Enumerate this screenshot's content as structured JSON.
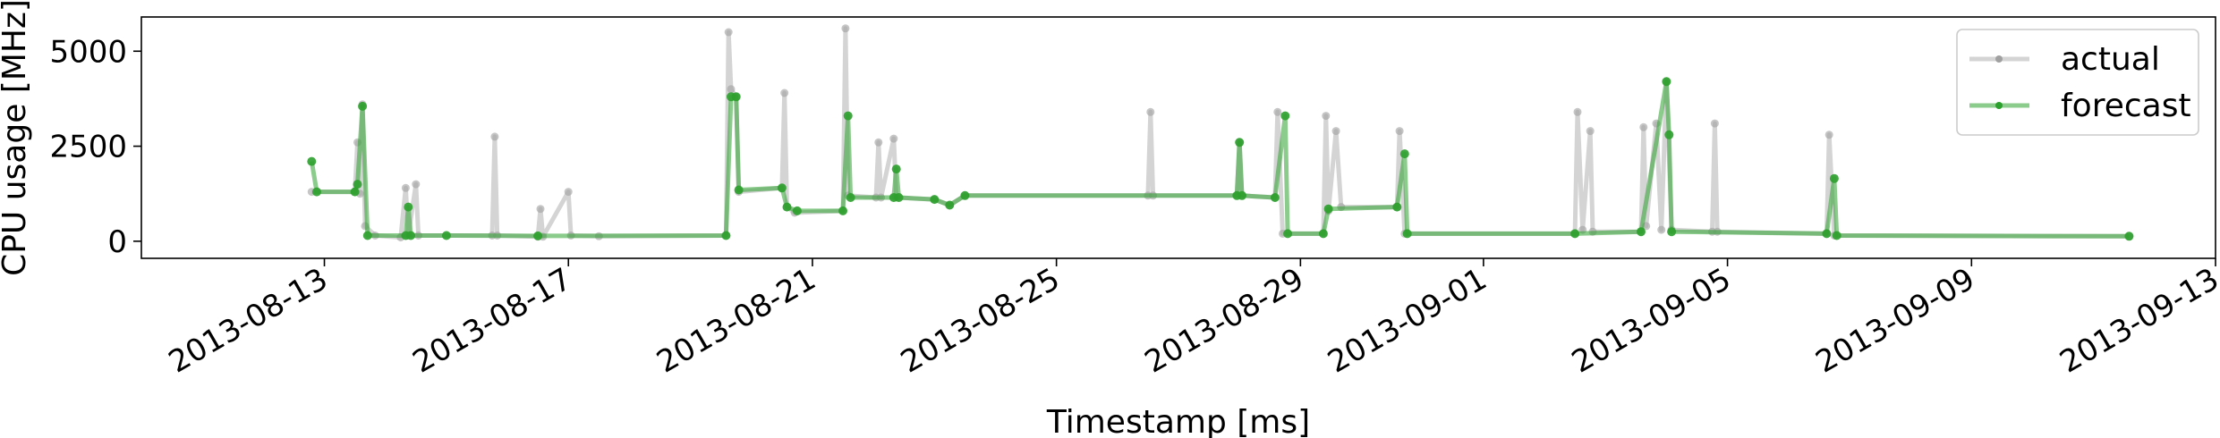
{
  "chart_data": {
    "type": "line",
    "title": "",
    "xlabel": "Timestamp [ms]",
    "ylabel": "CPU usage [MHz]",
    "xlim": [
      "2013-08-10",
      "2013-09-13"
    ],
    "ylim": [
      -450,
      5900
    ],
    "grid": false,
    "legend_position": "top-right",
    "x_ticks": [
      "2013-08-13",
      "2013-08-17",
      "2013-08-21",
      "2013-08-25",
      "2013-08-29",
      "2013-09-01",
      "2013-09-05",
      "2013-09-09",
      "2013-09-13"
    ],
    "y_ticks": [
      0,
      2500,
      5000
    ],
    "series": [
      {
        "name": "actual",
        "color": "#a0a0a0",
        "points": [
          [
            "2013-08-12 19:00",
            1300
          ],
          [
            "2013-08-13 12:00",
            1300
          ],
          [
            "2013-08-13 13:00",
            2600
          ],
          [
            "2013-08-13 14:00",
            1250
          ],
          [
            "2013-08-13 15:00",
            3600
          ],
          [
            "2013-08-13 16:00",
            400
          ],
          [
            "2013-08-13 20:00",
            150
          ],
          [
            "2013-08-14 06:00",
            100
          ],
          [
            "2013-08-14 08:00",
            1400
          ],
          [
            "2013-08-14 09:00",
            150
          ],
          [
            "2013-08-14 12:00",
            1500
          ],
          [
            "2013-08-14 13:00",
            150
          ],
          [
            "2013-08-15 18:00",
            150
          ],
          [
            "2013-08-15 19:00",
            2750
          ],
          [
            "2013-08-15 20:00",
            150
          ],
          [
            "2013-08-16 12:00",
            120
          ],
          [
            "2013-08-16 13:00",
            850
          ],
          [
            "2013-08-16 14:00",
            120
          ],
          [
            "2013-08-17 00:00",
            1300
          ],
          [
            "2013-08-17 01:00",
            150
          ],
          [
            "2013-08-17 12:00",
            130
          ],
          [
            "2013-08-19 14:00",
            150
          ],
          [
            "2013-08-19 15:00",
            5500
          ],
          [
            "2013-08-19 16:00",
            4000
          ],
          [
            "2013-08-19 18:00",
            3800
          ],
          [
            "2013-08-19 19:00",
            1300
          ],
          [
            "2013-08-20 12:00",
            1400
          ],
          [
            "2013-08-20 13:00",
            3900
          ],
          [
            "2013-08-20 14:00",
            900
          ],
          [
            "2013-08-20 17:00",
            750
          ],
          [
            "2013-08-21 12:00",
            800
          ],
          [
            "2013-08-21 13:00",
            5600
          ],
          [
            "2013-08-21 14:00",
            1200
          ],
          [
            "2013-08-22 01:00",
            1150
          ],
          [
            "2013-08-22 02:00",
            2600
          ],
          [
            "2013-08-22 03:00",
            1150
          ],
          [
            "2013-08-22 08:00",
            2700
          ],
          [
            "2013-08-22 09:00",
            1150
          ],
          [
            "2013-08-23 00:00",
            1100
          ],
          [
            "2013-08-23 06:00",
            950
          ],
          [
            "2013-08-23 12:00",
            1200
          ],
          [
            "2013-08-26 12:00",
            1200
          ],
          [
            "2013-08-26 13:00",
            3400
          ],
          [
            "2013-08-26 14:00",
            1200
          ],
          [
            "2013-08-27 23:00",
            1200
          ],
          [
            "2013-08-28 00:00",
            2600
          ],
          [
            "2013-08-28 01:00",
            1200
          ],
          [
            "2013-08-28 14:00",
            1150
          ],
          [
            "2013-08-28 15:00",
            3400
          ],
          [
            "2013-08-28 17:00",
            200
          ],
          [
            "2013-08-29 09:00",
            200
          ],
          [
            "2013-08-29 10:00",
            3300
          ],
          [
            "2013-08-29 11:00",
            800
          ],
          [
            "2013-08-29 14:00",
            2900
          ],
          [
            "2013-08-29 16:00",
            900
          ],
          [
            "2013-08-30 14:00",
            900
          ],
          [
            "2013-08-30 15:00",
            2900
          ],
          [
            "2013-08-30 17:00",
            200
          ],
          [
            "2013-09-02 12:00",
            200
          ],
          [
            "2013-09-02 13:00",
            3400
          ],
          [
            "2013-09-02 15:00",
            300
          ],
          [
            "2013-09-02 18:00",
            2900
          ],
          [
            "2013-09-02 19:00",
            250
          ],
          [
            "2013-09-03 14:00",
            250
          ],
          [
            "2013-09-03 15:00",
            3000
          ],
          [
            "2013-09-03 16:00",
            400
          ],
          [
            "2013-09-03 20:00",
            3100
          ],
          [
            "2013-09-03 22:00",
            300
          ],
          [
            "2013-09-04 00:00",
            4200
          ],
          [
            "2013-09-04 02:00",
            300
          ],
          [
            "2013-09-04 18:00",
            250
          ],
          [
            "2013-09-04 19:00",
            3100
          ],
          [
            "2013-09-04 20:00",
            250
          ],
          [
            "2013-09-06 15:00",
            200
          ],
          [
            "2013-09-06 16:00",
            2800
          ],
          [
            "2013-09-06 18:00",
            150
          ],
          [
            "2013-09-11 14:00",
            130
          ]
        ]
      },
      {
        "name": "forecast",
        "color": "#2ca02c",
        "points": [
          [
            "2013-08-12 19:00",
            2100
          ],
          [
            "2013-08-12 21:00",
            1300
          ],
          [
            "2013-08-13 12:00",
            1300
          ],
          [
            "2013-08-13 13:00",
            1500
          ],
          [
            "2013-08-13 15:00",
            3550
          ],
          [
            "2013-08-13 17:00",
            150
          ],
          [
            "2013-08-14 08:00",
            150
          ],
          [
            "2013-08-14 09:00",
            900
          ],
          [
            "2013-08-14 10:00",
            150
          ],
          [
            "2013-08-15 00:00",
            150
          ],
          [
            "2013-08-16 12:00",
            140
          ],
          [
            "2013-08-19 14:00",
            150
          ],
          [
            "2013-08-19 16:00",
            3800
          ],
          [
            "2013-08-19 18:00",
            3800
          ],
          [
            "2013-08-19 19:00",
            1350
          ],
          [
            "2013-08-20 12:00",
            1400
          ],
          [
            "2013-08-20 14:00",
            900
          ],
          [
            "2013-08-20 18:00",
            800
          ],
          [
            "2013-08-21 12:00",
            800
          ],
          [
            "2013-08-21 14:00",
            3300
          ],
          [
            "2013-08-21 15:00",
            1150
          ],
          [
            "2013-08-22 08:00",
            1150
          ],
          [
            "2013-08-22 09:00",
            1900
          ],
          [
            "2013-08-22 10:00",
            1150
          ],
          [
            "2013-08-23 00:00",
            1100
          ],
          [
            "2013-08-23 06:00",
            950
          ],
          [
            "2013-08-23 12:00",
            1200
          ],
          [
            "2013-08-27 23:00",
            1200
          ],
          [
            "2013-08-28 00:00",
            2600
          ],
          [
            "2013-08-28 01:00",
            1200
          ],
          [
            "2013-08-28 14:00",
            1150
          ],
          [
            "2013-08-28 18:00",
            3300
          ],
          [
            "2013-08-28 19:00",
            200
          ],
          [
            "2013-08-29 09:00",
            200
          ],
          [
            "2013-08-29 11:00",
            850
          ],
          [
            "2013-08-30 14:00",
            900
          ],
          [
            "2013-08-30 17:00",
            2300
          ],
          [
            "2013-08-30 18:00",
            200
          ],
          [
            "2013-09-02 12:00",
            200
          ],
          [
            "2013-09-03 14:00",
            250
          ],
          [
            "2013-09-04 00:00",
            4200
          ],
          [
            "2013-09-04 01:00",
            2800
          ],
          [
            "2013-09-04 02:00",
            250
          ],
          [
            "2013-09-06 15:00",
            200
          ],
          [
            "2013-09-06 18:00",
            1650
          ],
          [
            "2013-09-06 19:00",
            150
          ],
          [
            "2013-09-11 14:00",
            130
          ]
        ]
      }
    ]
  }
}
